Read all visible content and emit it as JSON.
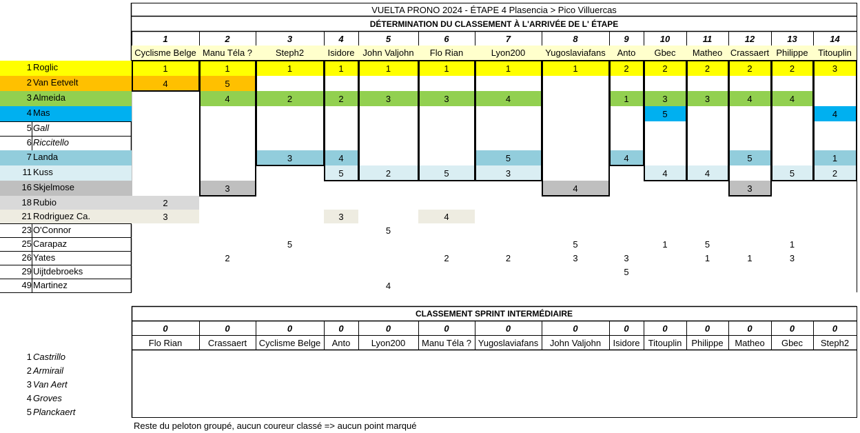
{
  "title": "VUELTA PRONO 2024  - ÉTAPE 4 Plasencia > Pico Villuercas",
  "section1": "DÉTERMINATION DU CLASSEMENT À L'ARRIVÉE DE L' ÉTAPE",
  "section2": "CLASSEMENT SPRINT INTERMÉDIAIRE",
  "colors": {
    "yellow": "#ffff00",
    "orange": "#ffc000",
    "green": "#92d050",
    "blue": "#00b0f0",
    "lightblue": "#92cddc",
    "paleblue": "#daeef3",
    "gray": "#bfbfbf",
    "lightgray": "#d9d9d9",
    "beige": "#eeece1",
    "verylight": "#f2f2f2"
  },
  "nums": [
    "1",
    "2",
    "3",
    "4",
    "5",
    "6",
    "7",
    "8",
    "9",
    "10",
    "11",
    "12",
    "13",
    "14"
  ],
  "players": [
    "Cyclisme Belge",
    "Manu Téla ?",
    "Steph2",
    "Isidore",
    "John Valjohn",
    "Flo Rian",
    "Lyon200",
    "Yugoslaviafans",
    "Anto",
    "Gbec",
    "Matheo",
    "Crassaert",
    "Philippe",
    "Titouplin"
  ],
  "riders": [
    {
      "rank": "1",
      "name": "Roglic",
      "italic": false,
      "fill": "yellow"
    },
    {
      "rank": "2",
      "name": "Van Eetvelt",
      "italic": false,
      "fill": "orange"
    },
    {
      "rank": "3",
      "name": "Almeida",
      "italic": false,
      "fill": "green"
    },
    {
      "rank": "4",
      "name": "Mas",
      "italic": false,
      "fill": "blue"
    },
    {
      "rank": "5",
      "name": "Gall",
      "italic": true,
      "fill": ""
    },
    {
      "rank": "6",
      "name": "Riccitello",
      "italic": true,
      "fill": ""
    },
    {
      "rank": "7",
      "name": "Landa",
      "italic": false,
      "fill": "lightblue"
    },
    {
      "rank": "11",
      "name": "Kuss",
      "italic": false,
      "fill": "paleblue"
    },
    {
      "rank": "16",
      "name": "Skjelmose",
      "italic": false,
      "fill": "gray"
    },
    {
      "rank": "18",
      "name": "Rubio",
      "italic": false,
      "fill": "lightgray"
    },
    {
      "rank": "21",
      "name": "Rodriguez Ca.",
      "italic": false,
      "fill": "beige"
    },
    {
      "rank": "23",
      "name": "O'Connor",
      "italic": false,
      "fill": ""
    },
    {
      "rank": "25",
      "name": "Carapaz",
      "italic": false,
      "fill": ""
    },
    {
      "rank": "26",
      "name": "Yates",
      "italic": false,
      "fill": ""
    },
    {
      "rank": "29",
      "name": "Uijtdebroeks",
      "italic": false,
      "fill": ""
    },
    {
      "rank": "49",
      "name": "Martinez",
      "italic": false,
      "fill": ""
    }
  ],
  "picks": [
    [
      "1",
      "4",
      "",
      "",
      "",
      "",
      "",
      "",
      "",
      "2",
      "3",
      "",
      "",
      "",
      "",
      ""
    ],
    [
      "1",
      "5",
      "4",
      "",
      "",
      "",
      "",
      "",
      "3",
      "",
      "",
      "",
      "",
      "2",
      "",
      ""
    ],
    [
      "1",
      "",
      "2",
      "",
      "",
      "",
      "3",
      "",
      "",
      "",
      "",
      "",
      "5",
      "",
      "",
      ""
    ],
    [
      "1",
      "",
      "2",
      "",
      "",
      "",
      "4",
      "5",
      "",
      "",
      "3",
      "",
      "",
      "",
      "",
      ""
    ],
    [
      "1",
      "",
      "3",
      "",
      "",
      "",
      "",
      "2",
      "",
      "",
      "",
      "5",
      "",
      "",
      "",
      "4"
    ],
    [
      "1",
      "",
      "3",
      "",
      "",
      "",
      "",
      "5",
      "",
      "",
      "4",
      "",
      "",
      "2",
      "",
      ""
    ],
    [
      "1",
      "",
      "4",
      "",
      "",
      "",
      "5",
      "3",
      "",
      "",
      "",
      "",
      "",
      "2",
      "",
      ""
    ],
    [
      "1",
      "",
      "",
      "",
      "",
      "",
      "",
      "",
      "4",
      "",
      "",
      "",
      "5",
      "3",
      "",
      ""
    ],
    [
      "2",
      "",
      "1",
      "",
      "",
      "",
      "4",
      "",
      "",
      "",
      "",
      "",
      "",
      "3",
      "5",
      ""
    ],
    [
      "2",
      "",
      "3",
      "5",
      "",
      "",
      "",
      "4",
      "",
      "",
      "",
      "",
      "1",
      "",
      "",
      ""
    ],
    [
      "2",
      "",
      "3",
      "",
      "",
      "",
      "",
      "4",
      "",
      "",
      "",
      "",
      "5",
      "1",
      "",
      ""
    ],
    [
      "2",
      "",
      "4",
      "",
      "",
      "",
      "5",
      "",
      "3",
      "",
      "",
      "",
      "",
      "1",
      "",
      ""
    ],
    [
      "2",
      "",
      "4",
      "",
      "",
      "",
      "",
      "5",
      "",
      "",
      "",
      "",
      "1",
      "3",
      "",
      ""
    ],
    [
      "3",
      "",
      "",
      "4",
      "",
      "",
      "1",
      "2",
      "",
      "",
      "",
      "",
      "",
      "",
      "",
      ""
    ]
  ],
  "sprint_scores": [
    "0",
    "0",
    "0",
    "0",
    "0",
    "0",
    "0",
    "0",
    "0",
    "0",
    "0",
    "0",
    "0",
    "0"
  ],
  "sprint_players": [
    "Flo Rian",
    "Crassaert",
    "Cyclisme Belge",
    "Anto",
    "Lyon200",
    "Manu Téla ?",
    "Yugoslaviafans",
    "John Valjohn",
    "Isidore",
    "Titouplin",
    "Philippe",
    "Matheo",
    "Gbec",
    "Steph2"
  ],
  "sprint_riders": [
    {
      "rank": "1",
      "name": "Castrillo"
    },
    {
      "rank": "2",
      "name": "Armirail"
    },
    {
      "rank": "3",
      "name": "Van Aert"
    },
    {
      "rank": "4",
      "name": "Groves"
    },
    {
      "rank": "5",
      "name": "Planckaert"
    }
  ],
  "footer": "Reste du peloton groupé, aucun coureur classé => aucun point marqué"
}
